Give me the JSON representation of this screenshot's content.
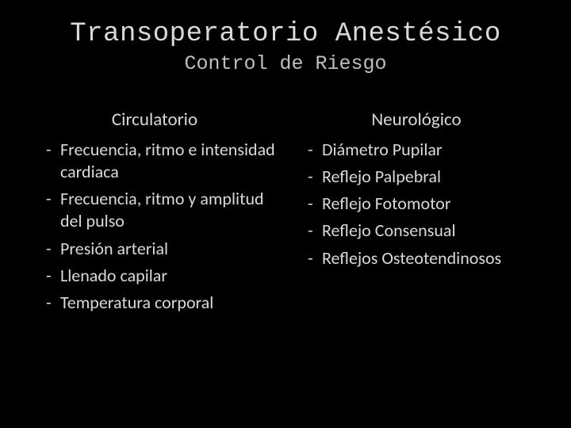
{
  "slide": {
    "title": "Transoperatorio Anestésico",
    "subtitle": "Control de Riesgo",
    "background_color": "#000000",
    "title_fontsize": 34,
    "subtitle_fontsize": 25,
    "title_font": "Consolas",
    "body_font": "Calibri",
    "left_column": {
      "header": "Circulatorio",
      "items": [
        "Frecuencia,  ritmo e intensidad cardiaca",
        "Frecuencia, ritmo y amplitud del pulso",
        "Presión arterial",
        "Llenado capilar",
        "Temperatura corporal"
      ]
    },
    "right_column": {
      "header": "Neurológico",
      "items": [
        "Diámetro Pupilar",
        "Reflejo Palpebral",
        "Reflejo Fotomotor",
        "Reflejo Consensual",
        "Reflejos Osteotendinosos"
      ]
    }
  }
}
